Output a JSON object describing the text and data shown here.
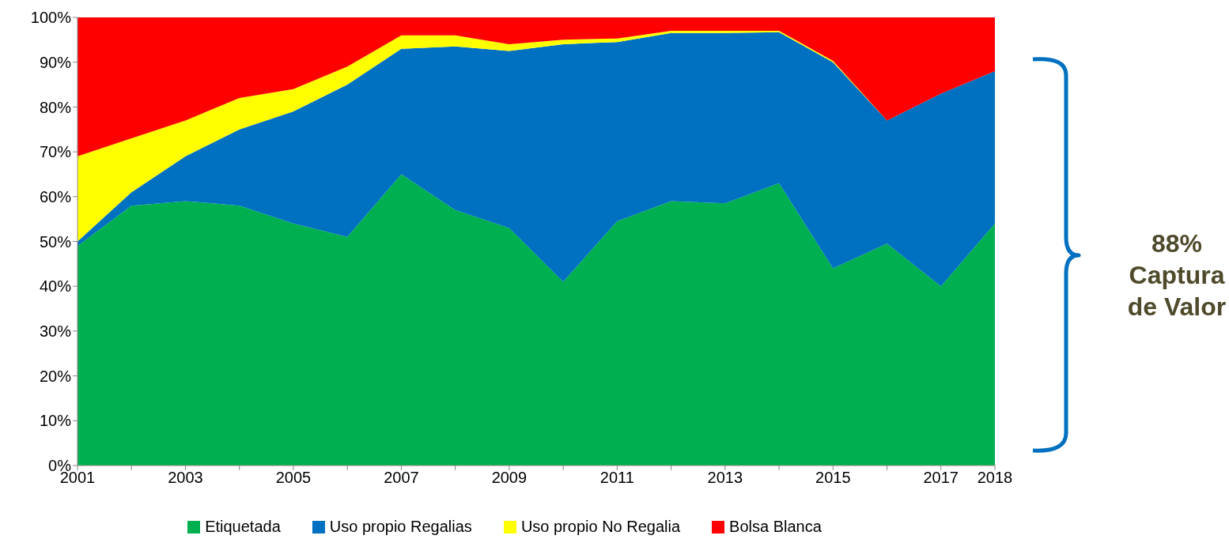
{
  "chart_data": {
    "type": "area",
    "stacked": true,
    "x": [
      2001,
      2002,
      2003,
      2004,
      2005,
      2006,
      2007,
      2008,
      2009,
      2010,
      2011,
      2012,
      2013,
      2014,
      2015,
      2016,
      2017,
      2018
    ],
    "series": [
      {
        "name": "Etiquetada",
        "color": "#00b050",
        "values": [
          49,
          58,
          59,
          58,
          54,
          51,
          65,
          57,
          53,
          41,
          54.5,
          59,
          58.5,
          63,
          44,
          49.5,
          40,
          54
        ]
      },
      {
        "name": "Uso propio Regalias",
        "color": "#0070c0",
        "values": [
          1,
          3,
          10,
          17,
          25,
          34,
          28,
          36.5,
          39.5,
          53,
          40,
          37.5,
          38,
          33.7,
          46,
          27.5,
          43,
          34
        ]
      },
      {
        "name": "Uso propio No Regalia",
        "color": "#ffff00",
        "values": [
          19,
          12,
          8,
          7,
          5,
          4,
          3,
          2.5,
          1.5,
          1,
          0.8,
          0.5,
          0.5,
          0.3,
          0.3,
          0,
          0,
          0
        ]
      },
      {
        "name": "Bolsa Blanca",
        "color": "#ff0000",
        "values": [
          31,
          27,
          23,
          18,
          16,
          11,
          4,
          4,
          6,
          5,
          4.7,
          3,
          3,
          3,
          9.7,
          23,
          17,
          12
        ]
      }
    ],
    "xlim": [
      2001,
      2018
    ],
    "xticks": [
      2001,
      {
        "value": 2002,
        "label": null
      },
      2003,
      {
        "value": 2004,
        "label": null
      },
      2005,
      {
        "value": 2006,
        "label": null
      },
      2007,
      {
        "value": 2008,
        "label": null
      },
      2009,
      {
        "value": 2010,
        "label": null
      },
      2011,
      {
        "value": 2012,
        "label": null
      },
      2013,
      {
        "value": 2014,
        "label": null
      },
      2015,
      {
        "value": 2016,
        "label": null
      },
      2017,
      2018
    ],
    "ylim": [
      0,
      100
    ],
    "yticks": [
      {
        "value": 0,
        "label": "0%"
      },
      {
        "value": 10,
        "label": "10%"
      },
      {
        "value": 20,
        "label": "20%"
      },
      {
        "value": 30,
        "label": "30%"
      },
      {
        "value": 40,
        "label": "40%"
      },
      {
        "value": 50,
        "label": "50%"
      },
      {
        "value": 60,
        "label": "60%"
      },
      {
        "value": 70,
        "label": "70%"
      },
      {
        "value": 80,
        "label": "80%"
      },
      {
        "value": 90,
        "label": "90%"
      },
      {
        "value": 100,
        "label": "100%"
      }
    ],
    "grid": false,
    "legend": "bottom",
    "annotations": [
      "88% Captura de Valor"
    ]
  }
}
